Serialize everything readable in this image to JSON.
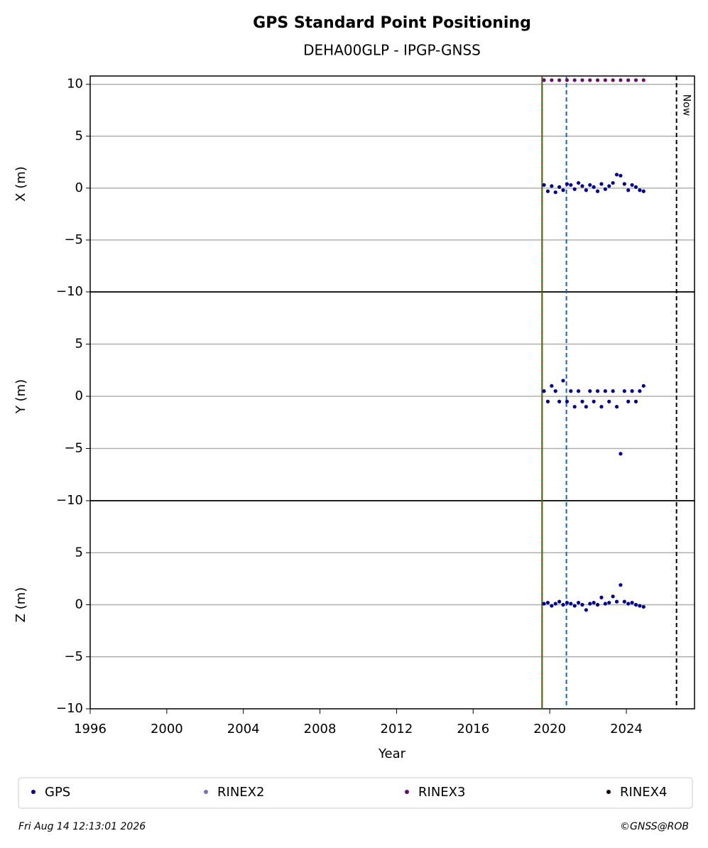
{
  "chart_data": {
    "type": "scatter",
    "title": "GPS Standard Point Positioning",
    "subtitle": "DEHA00GLP - IPGP-GNSS",
    "xlabel": "Year",
    "xlim": [
      1996,
      2027.56
    ],
    "xticks": [
      1996,
      2000,
      2004,
      2008,
      2012,
      2016,
      2020,
      2024
    ],
    "vlines": [
      {
        "x": 2019.6,
        "color": "#008000",
        "dash": "none"
      },
      {
        "x": 2019.6,
        "color": "#d62728",
        "dash": "2,3"
      },
      {
        "x": 2020.87,
        "color": "#1f5fbf",
        "dash": "6,4"
      },
      {
        "x": 2026.62,
        "color": "#000000",
        "dash": "6,4"
      }
    ],
    "now_label": "Now",
    "panels": [
      {
        "ylabel": "X (m)",
        "ylim": [
          -10,
          10.8
        ],
        "yticks": [
          {
            "value": -10,
            "label": "−10"
          },
          {
            "value": -5,
            "label": "−5"
          },
          0,
          5,
          10
        ],
        "series": [
          {
            "name": "GPS",
            "color": "#00008b",
            "x": [
              2019.7,
              2019.9,
              2020.1,
              2020.3,
              2020.5,
              2020.7,
              2020.9,
              2021.1,
              2021.3,
              2021.5,
              2021.7,
              2021.9,
              2022.1,
              2022.3,
              2022.5,
              2022.7,
              2022.9,
              2023.1,
              2023.3,
              2023.5,
              2023.7,
              2023.9,
              2024.1,
              2024.3,
              2024.5,
              2024.7,
              2024.9
            ],
            "values": [
              0.3,
              -0.3,
              0.2,
              -0.4,
              0.1,
              -0.2,
              0.4,
              0.3,
              -0.1,
              0.5,
              0.2,
              -0.2,
              0.3,
              0.1,
              -0.3,
              0.4,
              -0.1,
              0.2,
              0.5,
              1.3,
              1.2,
              0.4,
              -0.2,
              0.3,
              0.1,
              -0.2,
              -0.3
            ]
          },
          {
            "name": "RINEX3",
            "color": "#6a0a6a",
            "x": [
              2019.7,
              2020.1,
              2020.5,
              2020.9,
              2021.3,
              2021.7,
              2022.1,
              2022.5,
              2022.9,
              2023.3,
              2023.7,
              2024.1,
              2024.5,
              2024.9
            ],
            "values": [
              10.4,
              10.4,
              10.4,
              10.4,
              10.4,
              10.4,
              10.4,
              10.4,
              10.4,
              10.4,
              10.4,
              10.4,
              10.4,
              10.4
            ]
          }
        ]
      },
      {
        "ylabel": "Y (m)",
        "ylim": [
          -10,
          10
        ],
        "yticks": [
          {
            "value": -10,
            "label": "−10"
          },
          {
            "value": -5,
            "label": "−5"
          },
          0,
          5
        ],
        "series": [
          {
            "name": "GPS",
            "color": "#00008b",
            "x": [
              2019.7,
              2019.9,
              2020.1,
              2020.3,
              2020.5,
              2020.7,
              2020.9,
              2021.1,
              2021.3,
              2021.5,
              2021.7,
              2021.9,
              2022.1,
              2022.3,
              2022.5,
              2022.7,
              2022.9,
              2023.1,
              2023.3,
              2023.5,
              2023.7,
              2023.9,
              2024.1,
              2024.3,
              2024.5,
              2024.7,
              2024.9
            ],
            "values": [
              0.5,
              -0.5,
              1.0,
              0.5,
              -0.5,
              1.5,
              -0.5,
              0.5,
              -1.0,
              0.5,
              -0.5,
              -1.0,
              0.5,
              -0.5,
              0.5,
              -1.0,
              0.5,
              -0.5,
              0.5,
              -1.0,
              -5.5,
              0.5,
              -0.5,
              0.5,
              -0.5,
              0.5,
              1.0
            ]
          }
        ]
      },
      {
        "ylabel": "Z (m)",
        "ylim": [
          -10,
          10
        ],
        "yticks": [
          {
            "value": -10,
            "label": "−10"
          },
          {
            "value": -5,
            "label": "−5"
          },
          0,
          5
        ],
        "series": [
          {
            "name": "GPS",
            "color": "#00008b",
            "x": [
              2019.7,
              2019.9,
              2020.1,
              2020.3,
              2020.5,
              2020.7,
              2020.9,
              2021.1,
              2021.3,
              2021.5,
              2021.7,
              2021.9,
              2022.1,
              2022.3,
              2022.5,
              2022.7,
              2022.9,
              2023.1,
              2023.3,
              2023.5,
              2023.7,
              2023.9,
              2024.1,
              2024.3,
              2024.5,
              2024.7,
              2024.9
            ],
            "values": [
              0.1,
              0.2,
              -0.1,
              0.1,
              0.3,
              0.0,
              0.2,
              0.1,
              -0.1,
              0.2,
              0.0,
              -0.5,
              0.1,
              0.2,
              0.0,
              0.7,
              0.1,
              0.2,
              0.8,
              0.3,
              1.9,
              0.3,
              0.1,
              0.2,
              0.0,
              -0.1,
              -0.2
            ]
          }
        ]
      }
    ],
    "legend": [
      {
        "name": "GPS",
        "color": "#00008b"
      },
      {
        "name": "RINEX2",
        "color": "#7b6fb8"
      },
      {
        "name": "RINEX3",
        "color": "#6a0a6a"
      },
      {
        "name": "RINEX4",
        "color": "#200020"
      }
    ],
    "footer": {
      "left": "Fri Aug 14 12:13:01 2026",
      "right": "©GNSS@ROB"
    }
  }
}
